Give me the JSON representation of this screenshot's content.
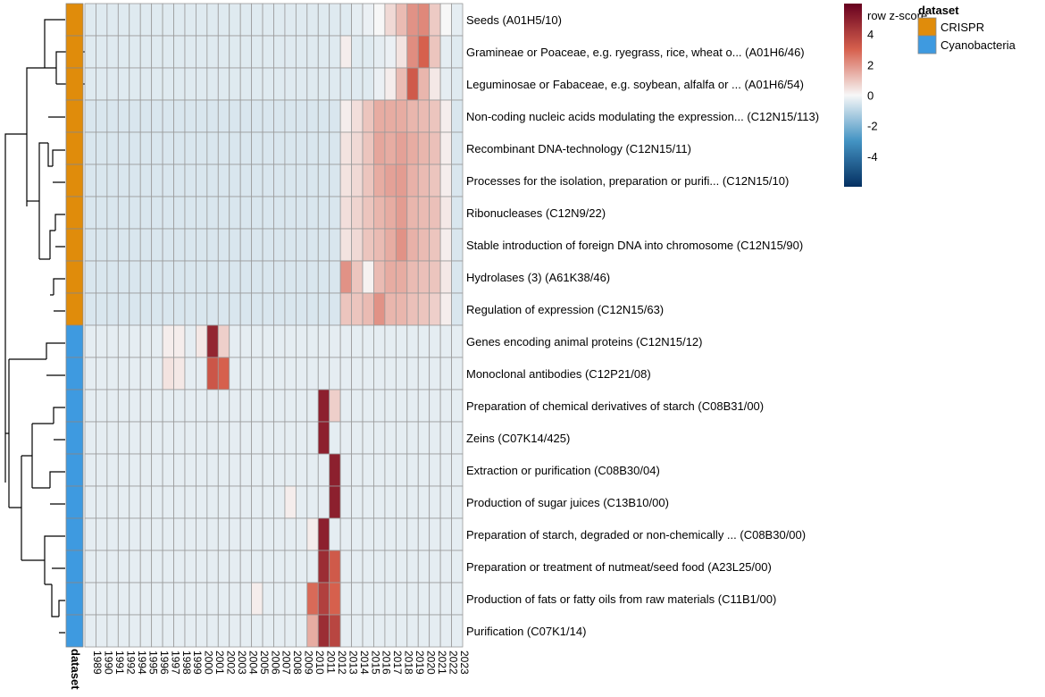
{
  "chart_data": {
    "type": "heatmap",
    "title": "",
    "xlabel": "",
    "ylabel": "",
    "annotation_column_label": "dataset",
    "columns": [
      "1989",
      "1990",
      "1991",
      "1992",
      "1994",
      "1995",
      "1996",
      "1997",
      "1998",
      "1999",
      "2000",
      "2001",
      "2002",
      "2003",
      "2004",
      "2005",
      "2006",
      "2007",
      "2008",
      "2009",
      "2010",
      "2011",
      "2012",
      "2013",
      "2014",
      "2015",
      "2016",
      "2017",
      "2018",
      "2019",
      "2020",
      "2021",
      "2022",
      "2023"
    ],
    "rows": [
      {
        "label": "Seeds (A01H5/10)",
        "dataset": "CRISPR",
        "values": [
          -0.4,
          -0.4,
          -0.4,
          -0.4,
          -0.4,
          -0.4,
          -0.4,
          -0.4,
          -0.4,
          -0.4,
          -0.4,
          -0.4,
          -0.4,
          -0.4,
          -0.4,
          -0.4,
          -0.4,
          -0.4,
          -0.4,
          -0.4,
          -0.4,
          -0.4,
          -0.4,
          -0.4,
          -0.3,
          -0.2,
          0.0,
          0.6,
          1.2,
          2.0,
          2.2,
          0.9,
          0.0,
          -0.3
        ]
      },
      {
        "label": "Gramineae or Poaceae, e.g. ryegrass, rice, wheat o... (A01H6/46)",
        "dataset": "CRISPR",
        "values": [
          -0.4,
          -0.4,
          -0.4,
          -0.4,
          -0.4,
          -0.4,
          -0.4,
          -0.4,
          -0.4,
          -0.4,
          -0.4,
          -0.4,
          -0.4,
          -0.4,
          -0.4,
          -0.4,
          -0.4,
          -0.4,
          -0.4,
          -0.4,
          -0.4,
          -0.4,
          -0.4,
          0.2,
          -0.4,
          -0.4,
          -0.3,
          -0.2,
          0.4,
          2.1,
          3.0,
          1.0,
          -0.3,
          -0.4
        ]
      },
      {
        "label": "Leguminosae or Fabaceae, e.g. soybean, alfalfa or ... (A01H6/54)",
        "dataset": "CRISPR",
        "values": [
          -0.4,
          -0.4,
          -0.4,
          -0.4,
          -0.4,
          -0.4,
          -0.4,
          -0.4,
          -0.4,
          -0.4,
          -0.4,
          -0.4,
          -0.4,
          -0.4,
          -0.4,
          -0.4,
          -0.4,
          -0.4,
          -0.4,
          -0.4,
          -0.4,
          -0.4,
          -0.4,
          -0.4,
          -0.4,
          -0.4,
          -0.2,
          0.2,
          1.2,
          3.2,
          1.3,
          0.3,
          -0.3,
          -0.4
        ]
      },
      {
        "label": "Non-coding nucleic acids modulating the expression... (C12N15/113)",
        "dataset": "CRISPR",
        "values": [
          -0.5,
          -0.5,
          -0.5,
          -0.5,
          -0.5,
          -0.5,
          -0.5,
          -0.5,
          -0.5,
          -0.5,
          -0.5,
          -0.5,
          -0.5,
          -0.5,
          -0.5,
          -0.5,
          -0.5,
          -0.5,
          -0.5,
          -0.5,
          -0.5,
          -0.5,
          -0.5,
          0.2,
          0.5,
          1.0,
          1.5,
          1.5,
          1.5,
          1.3,
          1.2,
          1.0,
          0.2,
          -0.5
        ]
      },
      {
        "label": "Recombinant DNA-technology (C12N15/11)",
        "dataset": "CRISPR",
        "values": [
          -0.5,
          -0.5,
          -0.5,
          -0.5,
          -0.5,
          -0.5,
          -0.5,
          -0.5,
          -0.5,
          -0.5,
          -0.5,
          -0.5,
          -0.5,
          -0.5,
          -0.5,
          -0.5,
          -0.5,
          -0.5,
          -0.5,
          -0.5,
          -0.5,
          -0.5,
          -0.5,
          0.4,
          0.6,
          1.0,
          1.6,
          1.5,
          1.7,
          1.5,
          1.3,
          1.1,
          0.2,
          -0.5
        ]
      },
      {
        "label": "Processes for the isolation, preparation or purifi... (C12N15/10)",
        "dataset": "CRISPR",
        "values": [
          -0.5,
          -0.5,
          -0.5,
          -0.5,
          -0.5,
          -0.5,
          -0.5,
          -0.5,
          -0.5,
          -0.5,
          -0.5,
          -0.5,
          -0.5,
          -0.5,
          -0.5,
          -0.5,
          -0.5,
          -0.5,
          -0.5,
          -0.5,
          -0.5,
          -0.5,
          -0.5,
          0.4,
          0.6,
          1.0,
          1.5,
          1.7,
          1.8,
          1.4,
          1.2,
          1.0,
          0.2,
          -0.5
        ]
      },
      {
        "label": "Ribonucleases (C12N9/22)",
        "dataset": "CRISPR",
        "values": [
          -0.5,
          -0.5,
          -0.5,
          -0.5,
          -0.5,
          -0.5,
          -0.5,
          -0.5,
          -0.5,
          -0.5,
          -0.5,
          -0.5,
          -0.5,
          -0.5,
          -0.5,
          -0.5,
          -0.5,
          -0.5,
          -0.5,
          -0.5,
          -0.5,
          -0.5,
          -0.5,
          0.5,
          0.7,
          1.0,
          1.3,
          1.5,
          1.8,
          1.3,
          1.2,
          1.1,
          0.3,
          -0.5
        ]
      },
      {
        "label": "Stable introduction of foreign DNA into chromosome (C12N15/90)",
        "dataset": "CRISPR",
        "values": [
          -0.5,
          -0.5,
          -0.5,
          -0.5,
          -0.5,
          -0.5,
          -0.5,
          -0.5,
          -0.5,
          -0.5,
          -0.5,
          -0.5,
          -0.5,
          -0.5,
          -0.5,
          -0.5,
          -0.5,
          -0.5,
          -0.5,
          -0.5,
          -0.5,
          -0.5,
          -0.5,
          0.4,
          0.6,
          1.0,
          1.2,
          1.5,
          2.0,
          1.4,
          1.2,
          1.0,
          0.2,
          -0.5
        ]
      },
      {
        "label": "Hydrolases (3) (A61K38/46)",
        "dataset": "CRISPR",
        "values": [
          -0.5,
          -0.5,
          -0.5,
          -0.5,
          -0.5,
          -0.5,
          -0.5,
          -0.5,
          -0.5,
          -0.5,
          -0.5,
          -0.5,
          -0.5,
          -0.5,
          -0.5,
          -0.5,
          -0.5,
          -0.5,
          -0.5,
          -0.5,
          -0.5,
          -0.5,
          -0.5,
          2.0,
          1.0,
          0.1,
          1.2,
          1.5,
          1.5,
          1.2,
          1.1,
          1.0,
          0.3,
          -0.5
        ]
      },
      {
        "label": "Regulation of expression (C12N15/63)",
        "dataset": "CRISPR",
        "values": [
          -0.5,
          -0.5,
          -0.5,
          -0.5,
          -0.5,
          -0.5,
          -0.5,
          -0.5,
          -0.5,
          -0.5,
          -0.5,
          -0.5,
          -0.5,
          -0.5,
          -0.5,
          -0.5,
          -0.5,
          -0.5,
          -0.5,
          -0.5,
          -0.5,
          -0.5,
          -0.5,
          1.0,
          1.0,
          1.2,
          2.0,
          1.3,
          1.3,
          1.1,
          1.0,
          0.8,
          0.2,
          -0.5
        ]
      },
      {
        "label": "Genes encoding animal proteins (C12N15/12)",
        "dataset": "Cyanobacteria",
        "values": [
          -0.3,
          -0.3,
          -0.3,
          -0.3,
          -0.3,
          -0.3,
          -0.3,
          0.2,
          0.2,
          -0.3,
          0.3,
          4.8,
          0.8,
          -0.3,
          -0.3,
          -0.3,
          -0.3,
          -0.3,
          -0.3,
          -0.3,
          -0.3,
          -0.3,
          -0.3,
          -0.3,
          -0.3,
          -0.3,
          -0.3,
          -0.3,
          -0.3,
          -0.3,
          -0.3,
          -0.3,
          -0.3,
          -0.3
        ]
      },
      {
        "label": "Monoclonal antibodies (C12P21/08)",
        "dataset": "Cyanobacteria",
        "values": [
          -0.3,
          -0.3,
          -0.3,
          -0.3,
          -0.3,
          -0.3,
          -0.3,
          0.4,
          0.3,
          -0.3,
          -0.3,
          3.3,
          3.0,
          -0.3,
          -0.3,
          -0.3,
          -0.3,
          -0.3,
          -0.3,
          -0.3,
          -0.3,
          -0.3,
          -0.3,
          -0.3,
          -0.3,
          -0.3,
          -0.3,
          -0.3,
          -0.3,
          -0.3,
          -0.3,
          -0.3,
          -0.3,
          -0.3
        ]
      },
      {
        "label": "Preparation of chemical derivatives of starch (C08B31/00)",
        "dataset": "Cyanobacteria",
        "values": [
          -0.3,
          -0.3,
          -0.3,
          -0.3,
          -0.3,
          -0.3,
          -0.3,
          -0.3,
          -0.3,
          -0.3,
          -0.3,
          -0.3,
          -0.3,
          -0.3,
          -0.3,
          -0.3,
          -0.3,
          -0.3,
          -0.3,
          -0.3,
          -0.3,
          5.0,
          0.8,
          -0.3,
          -0.3,
          -0.3,
          -0.3,
          -0.3,
          -0.3,
          -0.3,
          -0.3,
          -0.3,
          -0.3,
          -0.3
        ]
      },
      {
        "label": "Zeins (C07K14/425)",
        "dataset": "Cyanobacteria",
        "values": [
          -0.3,
          -0.3,
          -0.3,
          -0.3,
          -0.3,
          -0.3,
          -0.3,
          -0.3,
          -0.3,
          -0.3,
          -0.3,
          -0.3,
          -0.3,
          -0.3,
          -0.3,
          -0.3,
          -0.3,
          -0.3,
          -0.3,
          -0.3,
          -0.3,
          5.0,
          -0.3,
          -0.3,
          -0.3,
          -0.3,
          -0.3,
          -0.3,
          -0.3,
          -0.3,
          -0.3,
          -0.3,
          -0.3,
          -0.3
        ]
      },
      {
        "label": "Extraction or purification (C08B30/04)",
        "dataset": "Cyanobacteria",
        "values": [
          -0.3,
          -0.3,
          -0.3,
          -0.3,
          -0.3,
          -0.3,
          -0.3,
          -0.3,
          -0.3,
          -0.3,
          -0.3,
          -0.3,
          -0.3,
          -0.3,
          -0.3,
          -0.3,
          -0.3,
          -0.3,
          -0.3,
          -0.3,
          -0.3,
          -0.3,
          5.0,
          -0.3,
          -0.3,
          -0.3,
          -0.3,
          -0.3,
          -0.3,
          -0.3,
          -0.3,
          -0.3,
          -0.3,
          -0.3
        ]
      },
      {
        "label": "Production of sugar juices (C13B10/00)",
        "dataset": "Cyanobacteria",
        "values": [
          -0.3,
          -0.3,
          -0.3,
          -0.3,
          -0.3,
          -0.3,
          -0.3,
          -0.3,
          -0.3,
          -0.3,
          -0.3,
          -0.3,
          -0.3,
          -0.3,
          -0.3,
          -0.3,
          -0.3,
          -0.3,
          0.2,
          -0.3,
          -0.3,
          -0.3,
          5.0,
          -0.3,
          -0.3,
          -0.3,
          -0.3,
          -0.3,
          -0.3,
          -0.3,
          -0.3,
          -0.3,
          -0.3,
          -0.3
        ]
      },
      {
        "label": "Preparation of starch, degraded or non-chemically ... (C08B30/00)",
        "dataset": "Cyanobacteria",
        "values": [
          -0.3,
          -0.3,
          -0.3,
          -0.3,
          -0.3,
          -0.3,
          -0.3,
          -0.3,
          -0.3,
          -0.3,
          -0.3,
          -0.3,
          -0.3,
          -0.3,
          -0.3,
          -0.3,
          -0.3,
          -0.3,
          -0.3,
          -0.3,
          0.2,
          5.0,
          -0.3,
          -0.3,
          -0.3,
          -0.3,
          -0.3,
          -0.3,
          -0.3,
          -0.3,
          -0.3,
          -0.3,
          -0.3,
          -0.3
        ]
      },
      {
        "label": "Preparation or treatment of nutmeat/seed food (A23L25/00)",
        "dataset": "Cyanobacteria",
        "values": [
          -0.3,
          -0.3,
          -0.3,
          -0.3,
          -0.3,
          -0.3,
          -0.3,
          -0.3,
          -0.3,
          -0.3,
          -0.3,
          -0.3,
          -0.3,
          -0.3,
          -0.3,
          -0.3,
          -0.3,
          -0.3,
          -0.3,
          -0.3,
          -0.3,
          4.6,
          3.2,
          -0.3,
          -0.3,
          -0.3,
          -0.3,
          -0.3,
          -0.3,
          -0.3,
          -0.3,
          -0.3,
          -0.3,
          -0.3
        ]
      },
      {
        "label": "Production of fats or fatty oils from raw materials (C11B1/00)",
        "dataset": "Cyanobacteria",
        "values": [
          -0.3,
          -0.3,
          -0.3,
          -0.3,
          -0.3,
          -0.3,
          -0.3,
          -0.3,
          -0.3,
          -0.3,
          -0.3,
          -0.3,
          -0.3,
          -0.3,
          -0.3,
          0.2,
          -0.3,
          -0.3,
          -0.3,
          -0.3,
          2.8,
          4.0,
          3.0,
          -0.3,
          -0.3,
          -0.3,
          -0.3,
          -0.3,
          -0.3,
          -0.3,
          -0.3,
          -0.3,
          -0.3,
          -0.3
        ]
      },
      {
        "label": "Purification (C07K1/14)",
        "dataset": "Cyanobacteria",
        "values": [
          -0.3,
          -0.3,
          -0.3,
          -0.3,
          -0.3,
          -0.3,
          -0.3,
          -0.3,
          -0.3,
          -0.3,
          -0.3,
          -0.3,
          -0.3,
          -0.3,
          -0.3,
          -0.3,
          -0.3,
          -0.3,
          -0.3,
          -0.3,
          1.5,
          4.6,
          3.8,
          -0.3,
          -0.3,
          -0.3,
          -0.3,
          -0.3,
          -0.3,
          -0.3,
          -0.3,
          -0.3,
          -0.3,
          -0.3
        ]
      }
    ],
    "colorbar": {
      "title": "row z-score",
      "range": [
        -6,
        6
      ],
      "ticks": [
        "4",
        "2",
        "0",
        "-2",
        "-4"
      ],
      "tick_values": [
        4,
        2,
        0,
        -2,
        -4
      ],
      "colors": {
        "high": "#67001f",
        "mid": "#f7f7f7",
        "low": "#053061"
      }
    },
    "legend": {
      "title": "dataset",
      "entries": [
        {
          "label": "CRISPR",
          "color": "#e08c0b"
        },
        {
          "label": "Cyanobacteria",
          "color": "#3e9ae0"
        }
      ]
    }
  }
}
